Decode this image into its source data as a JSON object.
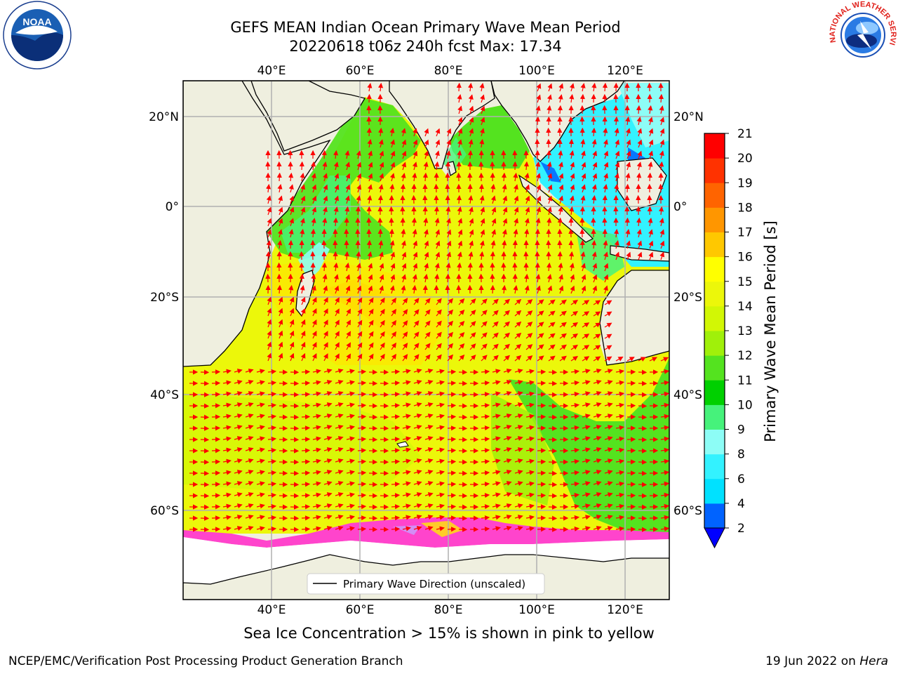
{
  "header": {
    "title_line1": "GEFS MEAN Indian Ocean Primary Wave Mean Period",
    "title_line2": "20220618 t06z 240h fcst   Max: 17.34"
  },
  "logos": {
    "noaa_text": "NOAA",
    "nws_text": "NATIONAL WEATHER SERVICE"
  },
  "map": {
    "lon_ticks": [
      "40°E",
      "60°E",
      "80°E",
      "100°E",
      "120°E"
    ],
    "lat_ticks": [
      "20°N",
      "0°",
      "20°S",
      "40°S",
      "60°S"
    ],
    "legend_label": "Primary Wave Direction (unscaled)"
  },
  "colorbar": {
    "label": "Primary Wave Mean Period [s]",
    "levels": [
      "2",
      "4",
      "6",
      "8",
      "9",
      "10",
      "11",
      "12",
      "13",
      "14",
      "15",
      "16",
      "17",
      "18",
      "19",
      "20",
      "21"
    ],
    "colors": [
      "#0063ff",
      "#00e1ff",
      "#33f2ff",
      "#8dfdf6",
      "#46f27b",
      "#00d000",
      "#54e31f",
      "#a0f00a",
      "#d2f705",
      "#ecf70a",
      "#ffff00",
      "#ffc800",
      "#ff9600",
      "#ff6400",
      "#ff3200",
      "#ff0000"
    ],
    "extend_color": "#0000ff"
  },
  "footer": {
    "ice_note": "Sea Ice Concentration > 15% is shown in pink to yellow",
    "credit": "NCEP/EMC/Verification Post Processing Product Generation Branch",
    "date_prefix": "19 Jun 2022 on ",
    "host": "Hera"
  },
  "colors": {
    "land": "#efefdf",
    "arrow": "#ff0000",
    "ice_pink": "#ff44cc"
  }
}
